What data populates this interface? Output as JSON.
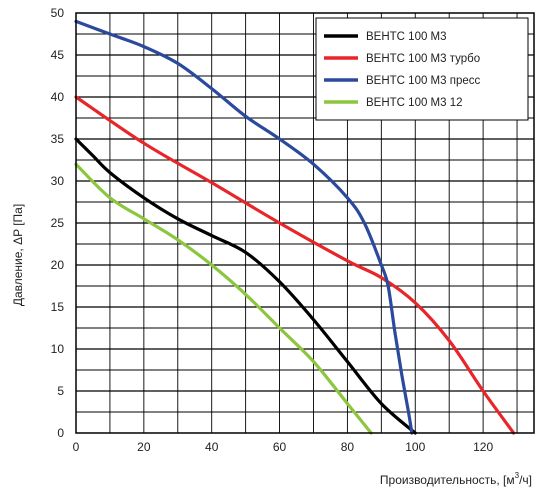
{
  "chart_data": {
    "type": "line",
    "xlabel_main": "Производительность, [м",
    "xlabel_sup": "3",
    "xlabel_tail": "/ч]",
    "ylabel": "Давление, ΔP [Па]",
    "xlim": [
      0,
      135
    ],
    "ylim": [
      0,
      50
    ],
    "x_ticks": [
      0,
      20,
      40,
      60,
      80,
      100,
      120
    ],
    "y_ticks": [
      0,
      5,
      10,
      15,
      20,
      25,
      30,
      35,
      40,
      45,
      50
    ],
    "x_minor_step": 10,
    "y_minor_step": 2.5,
    "grid": true,
    "legend_position": "top-right",
    "series": [
      {
        "name": "ВЕНТС 100 М3",
        "color": "#000000",
        "points": [
          [
            0,
            35
          ],
          [
            5,
            33
          ],
          [
            10,
            31
          ],
          [
            20,
            28
          ],
          [
            30,
            25.5
          ],
          [
            40,
            23.5
          ],
          [
            50,
            21.5
          ],
          [
            60,
            18
          ],
          [
            70,
            13.5
          ],
          [
            80,
            8.5
          ],
          [
            90,
            3.5
          ],
          [
            100,
            0
          ]
        ]
      },
      {
        "name": "ВЕНТС 100 М3 турбо",
        "color": "#e8262a",
        "points": [
          [
            0,
            40
          ],
          [
            20,
            34.5
          ],
          [
            40,
            29.8
          ],
          [
            60,
            25
          ],
          [
            80,
            20.5
          ],
          [
            90,
            18.5
          ],
          [
            100,
            15.5
          ],
          [
            110,
            11
          ],
          [
            120,
            5
          ],
          [
            129,
            0
          ]
        ]
      },
      {
        "name": "ВЕНТС 100 М3 пресс",
        "color": "#2b4a9e",
        "points": [
          [
            0,
            49
          ],
          [
            10,
            47.5
          ],
          [
            20,
            46
          ],
          [
            30,
            44
          ],
          [
            40,
            41
          ],
          [
            50,
            37.7
          ],
          [
            60,
            35
          ],
          [
            70,
            32
          ],
          [
            80,
            28
          ],
          [
            85,
            25
          ],
          [
            90,
            20
          ],
          [
            92,
            17.5
          ],
          [
            94,
            12
          ],
          [
            96,
            7
          ],
          [
            98,
            2.5
          ],
          [
            99,
            0
          ]
        ]
      },
      {
        "name": "ВЕНТС 100 М3 12",
        "color": "#8cc63f",
        "points": [
          [
            0,
            32
          ],
          [
            10,
            28
          ],
          [
            20,
            25.5
          ],
          [
            30,
            23
          ],
          [
            40,
            20
          ],
          [
            50,
            16.5
          ],
          [
            60,
            12.5
          ],
          [
            70,
            8.5
          ],
          [
            80,
            3.5
          ],
          [
            87,
            0
          ]
        ]
      }
    ]
  }
}
